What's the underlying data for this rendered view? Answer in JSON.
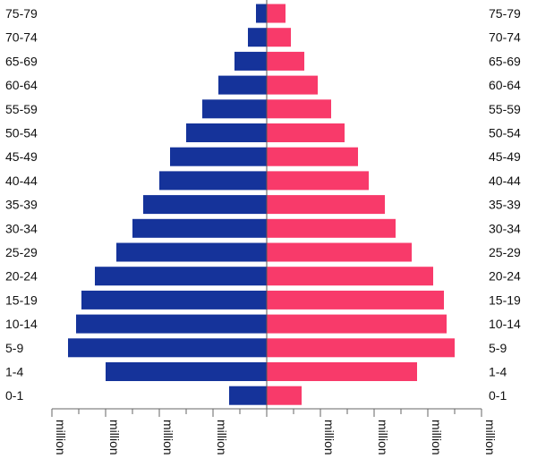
{
  "chart_data": {
    "type": "bar",
    "orientation": "horizontal-population-pyramid",
    "categories": [
      "75-79",
      "70-74",
      "65-69",
      "60-64",
      "55-59",
      "50-54",
      "45-49",
      "40-44",
      "35-39",
      "30-34",
      "25-29",
      "20-24",
      "15-19",
      "10-14",
      "5-9",
      "1-4",
      "0-1"
    ],
    "series": [
      {
        "values": [
          0.2,
          0.35,
          0.6,
          0.9,
          1.2,
          1.5,
          1.8,
          2.0,
          2.3,
          2.5,
          2.8,
          3.2,
          3.45,
          3.55,
          3.7,
          3.0,
          0.7
        ],
        "color": "#15339a",
        "side": "left"
      },
      {
        "values": [
          0.35,
          0.45,
          0.7,
          0.95,
          1.2,
          1.45,
          1.7,
          1.9,
          2.2,
          2.4,
          2.7,
          3.1,
          3.3,
          3.35,
          3.5,
          2.8,
          0.65
        ],
        "color": "#f83a6a",
        "side": "right"
      }
    ],
    "xlim": [
      -4,
      4
    ],
    "x_tick_labels": [
      "million",
      "million",
      "million",
      "million",
      "million",
      "million",
      "million",
      "million"
    ],
    "grid": false,
    "colors": {
      "left": "#15339a",
      "right": "#f83a6a",
      "axis": "#666666"
    }
  }
}
